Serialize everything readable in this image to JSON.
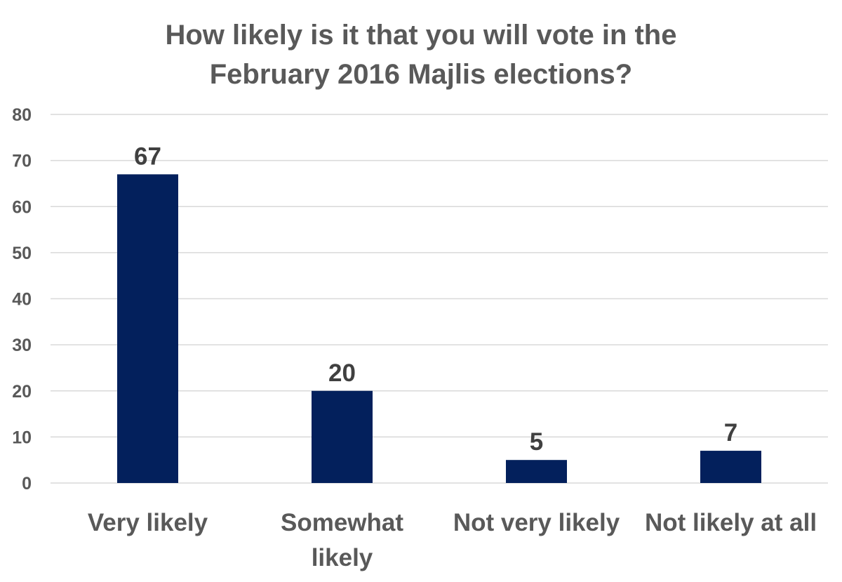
{
  "chart_data": {
    "type": "bar",
    "title_lines": [
      "How likely is it that you will vote in the",
      "February 2016 Majlis elections?"
    ],
    "title": "How likely is it that you will vote in the February 2016 Majlis elections?",
    "categories": [
      "Very likely",
      "Somewhat likely",
      "Not very likely",
      "Not likely at all"
    ],
    "category_label_lines": [
      [
        "Very likely"
      ],
      [
        "Somewhat",
        "likely"
      ],
      [
        "Not very likely"
      ],
      [
        "Not likely at all"
      ]
    ],
    "values": [
      67,
      20,
      5,
      7
    ],
    "data_labels": [
      "67",
      "20",
      "5",
      "7"
    ],
    "ylim": [
      0,
      80
    ],
    "yticks": [
      0,
      10,
      20,
      30,
      40,
      50,
      60,
      70,
      80
    ],
    "xlabel": "",
    "ylabel": "",
    "grid": true,
    "legend": "none",
    "bar_color": "#03205C",
    "grid_color": "#D9D9D9"
  }
}
